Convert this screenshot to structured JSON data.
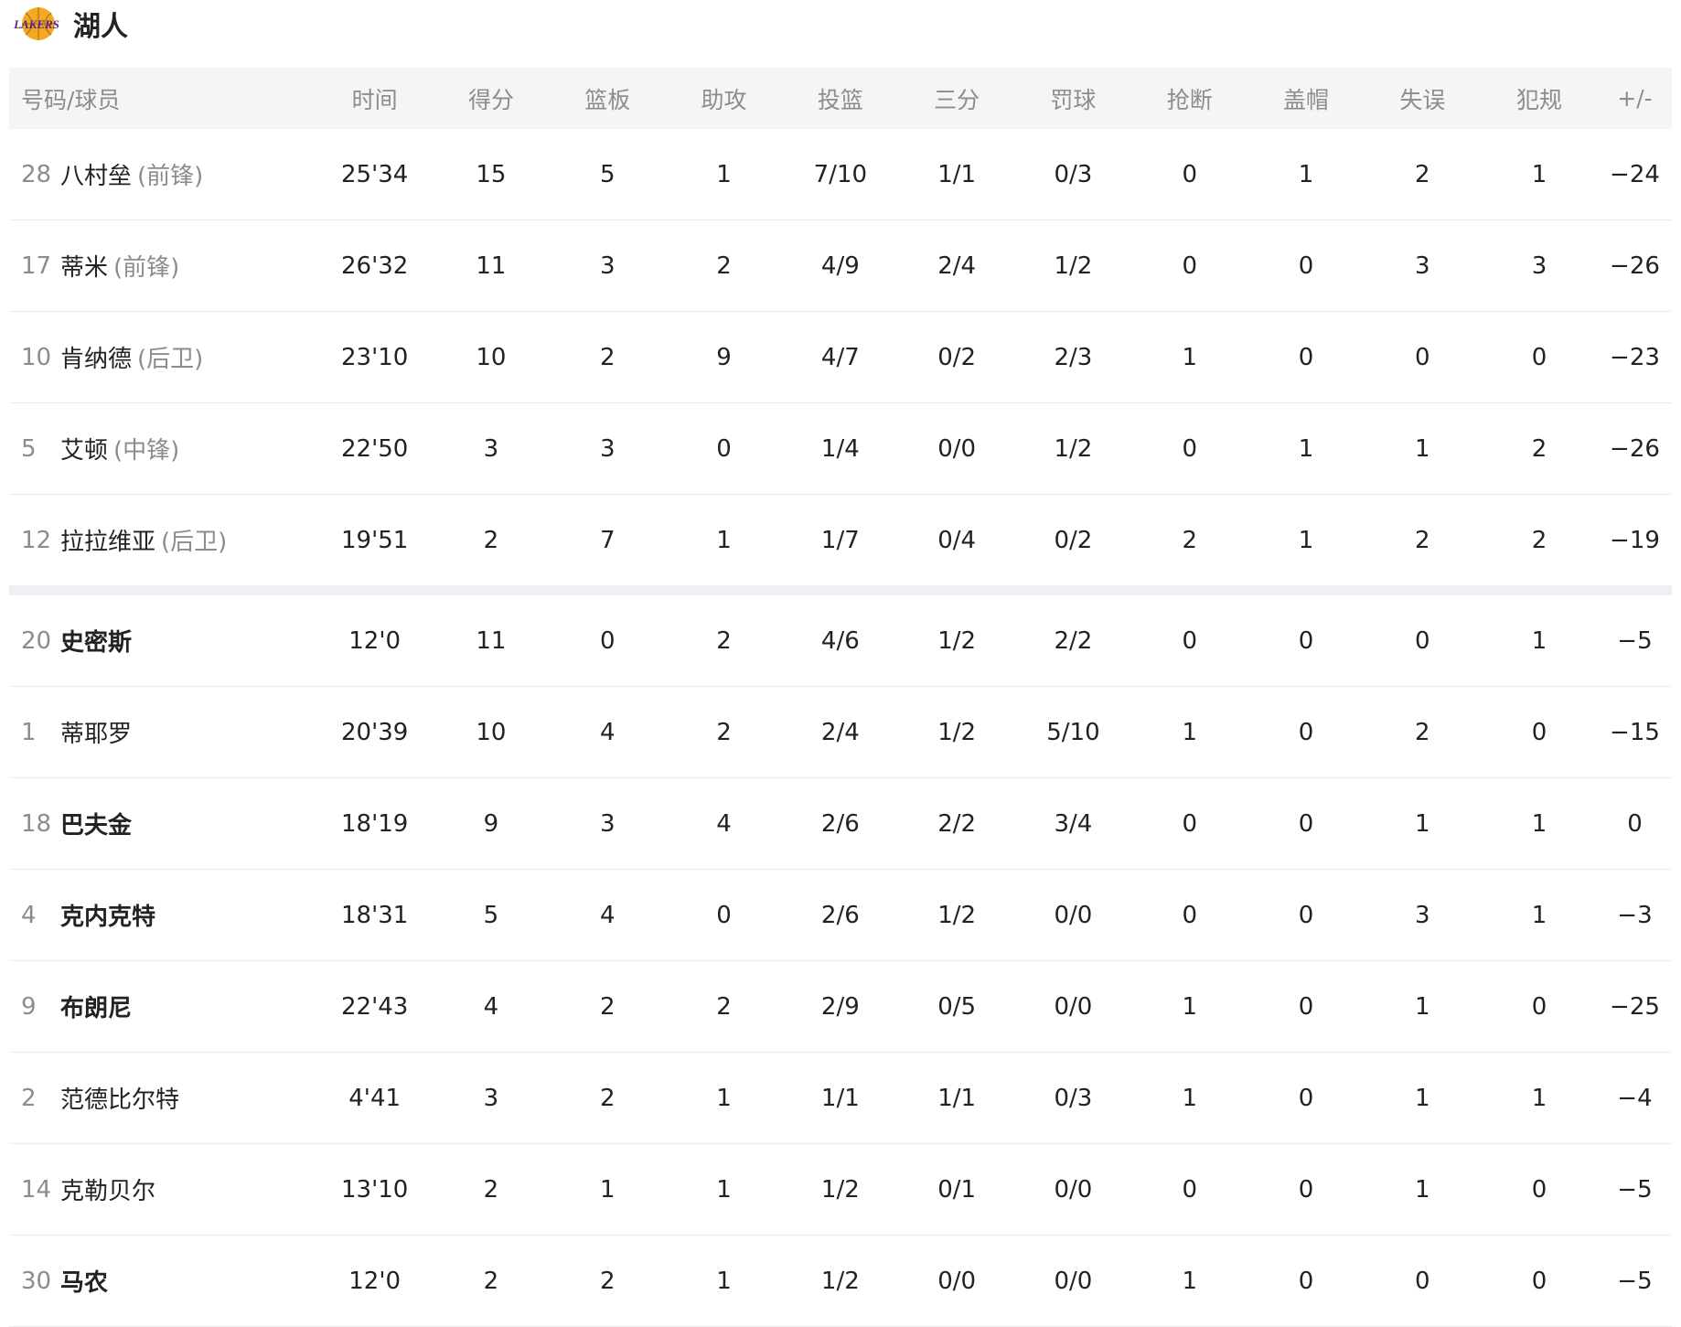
{
  "team": {
    "name": "湖人",
    "logo_text": "LAKERS",
    "logo_colors": {
      "ball": "#f4a925",
      "text": "#552583"
    }
  },
  "columns": [
    "号码/球员",
    "时间",
    "得分",
    "篮板",
    "助攻",
    "投篮",
    "三分",
    "罚球",
    "抢断",
    "盖帽",
    "失误",
    "犯规",
    "+/-"
  ],
  "starters": [
    {
      "num": "28",
      "name": "八村垒",
      "pos": "(前锋)",
      "bold": false,
      "stats": [
        "25'34",
        "15",
        "5",
        "1",
        "7/10",
        "1/1",
        "0/3",
        "0",
        "1",
        "2",
        "1",
        "−24"
      ]
    },
    {
      "num": "17",
      "name": "蒂米",
      "pos": "(前锋)",
      "bold": false,
      "stats": [
        "26'32",
        "11",
        "3",
        "2",
        "4/9",
        "2/4",
        "1/2",
        "0",
        "0",
        "3",
        "3",
        "−26"
      ]
    },
    {
      "num": "10",
      "name": "肯纳德",
      "pos": "(后卫)",
      "bold": false,
      "stats": [
        "23'10",
        "10",
        "2",
        "9",
        "4/7",
        "0/2",
        "2/3",
        "1",
        "0",
        "0",
        "0",
        "−23"
      ]
    },
    {
      "num": "5",
      "name": "艾顿",
      "pos": "(中锋)",
      "bold": false,
      "stats": [
        "22'50",
        "3",
        "3",
        "0",
        "1/4",
        "0/0",
        "1/2",
        "0",
        "1",
        "1",
        "2",
        "−26"
      ]
    },
    {
      "num": "12",
      "name": "拉拉维亚",
      "pos": "(后卫)",
      "bold": false,
      "stats": [
        "19'51",
        "2",
        "7",
        "1",
        "1/7",
        "0/4",
        "0/2",
        "2",
        "1",
        "2",
        "2",
        "−19"
      ]
    }
  ],
  "bench": [
    {
      "num": "20",
      "name": "史密斯",
      "pos": "",
      "bold": true,
      "stats": [
        "12'0",
        "11",
        "0",
        "2",
        "4/6",
        "1/2",
        "2/2",
        "0",
        "0",
        "0",
        "1",
        "−5"
      ]
    },
    {
      "num": "1",
      "name": "蒂耶罗",
      "pos": "",
      "bold": false,
      "stats": [
        "20'39",
        "10",
        "4",
        "2",
        "2/4",
        "1/2",
        "5/10",
        "1",
        "0",
        "2",
        "0",
        "−15"
      ]
    },
    {
      "num": "18",
      "name": "巴夫金",
      "pos": "",
      "bold": true,
      "stats": [
        "18'19",
        "9",
        "3",
        "4",
        "2/6",
        "2/2",
        "3/4",
        "0",
        "0",
        "1",
        "1",
        "0"
      ]
    },
    {
      "num": "4",
      "name": "克内克特",
      "pos": "",
      "bold": true,
      "stats": [
        "18'31",
        "5",
        "4",
        "0",
        "2/6",
        "1/2",
        "0/0",
        "0",
        "0",
        "3",
        "1",
        "−3"
      ]
    },
    {
      "num": "9",
      "name": "布朗尼",
      "pos": "",
      "bold": true,
      "stats": [
        "22'43",
        "4",
        "2",
        "2",
        "2/9",
        "0/5",
        "0/0",
        "1",
        "0",
        "1",
        "0",
        "−25"
      ]
    },
    {
      "num": "2",
      "name": "范德比尔特",
      "pos": "",
      "bold": false,
      "stats": [
        "4'41",
        "3",
        "2",
        "1",
        "1/1",
        "1/1",
        "0/3",
        "1",
        "0",
        "1",
        "1",
        "−4"
      ]
    },
    {
      "num": "14",
      "name": "克勒贝尔",
      "pos": "",
      "bold": false,
      "stats": [
        "13'10",
        "2",
        "1",
        "1",
        "1/2",
        "0/1",
        "0/0",
        "0",
        "0",
        "1",
        "0",
        "−5"
      ]
    },
    {
      "num": "30",
      "name": "马农",
      "pos": "",
      "bold": true,
      "stats": [
        "12'0",
        "2",
        "2",
        "1",
        "1/2",
        "0/0",
        "0/0",
        "1",
        "0",
        "0",
        "0",
        "−5"
      ]
    }
  ]
}
